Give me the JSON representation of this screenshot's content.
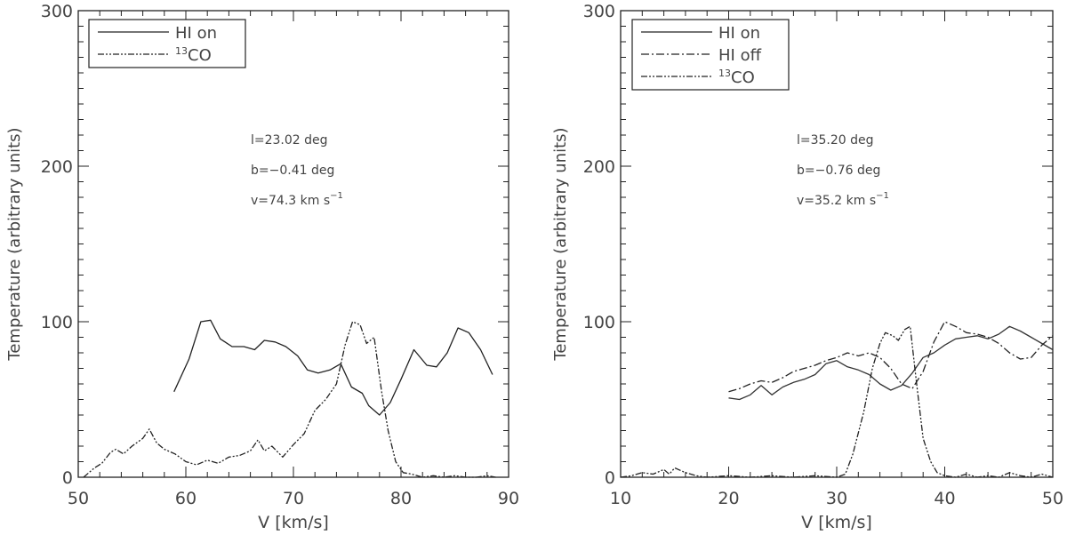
{
  "chart_data": [
    {
      "type": "line",
      "xlabel": "V [km/s]",
      "ylabel": "Temperature (arbitrary units)",
      "xlim": [
        50,
        90
      ],
      "ylim": [
        0,
        300
      ],
      "xticks": [
        50,
        60,
        70,
        80,
        90
      ],
      "yticks": [
        0,
        100,
        200,
        300
      ],
      "annotations": [
        "l=23.02 deg",
        "b=−0.41 deg",
        "v=74.3 km s"
      ],
      "annotation_superscript": "−1",
      "legend": {
        "position": "top-left",
        "entries": [
          {
            "label": "HI on",
            "style": "solid"
          },
          {
            "label": "CO",
            "superscript": "13",
            "style": "dash-dot-dot"
          }
        ]
      },
      "series": [
        {
          "name": "HI on",
          "style": "solid",
          "x": [
            58.9,
            60.3,
            61.4,
            62.3,
            63.2,
            64.3,
            65.4,
            66.4,
            67.3,
            68.3,
            69.3,
            70.4,
            71.3,
            72.3,
            73.4,
            74.4,
            75.4,
            76.4,
            77.0,
            78.0,
            79.0,
            80.0,
            81.2,
            82.4,
            83.3,
            84.3,
            85.3,
            86.3,
            87.4,
            88.5
          ],
          "y": [
            55,
            76,
            100,
            101,
            89,
            84,
            84,
            82,
            88,
            87,
            84,
            78,
            69,
            67,
            69,
            73,
            58,
            54,
            46,
            40,
            48,
            63,
            82,
            72,
            71,
            80,
            96,
            93,
            82,
            66
          ]
        },
        {
          "name": "13CO",
          "style": "dash-dot-dot",
          "x": [
            50.5,
            51.5,
            52.2,
            53.0,
            53.5,
            54.2,
            55.0,
            56.0,
            56.6,
            57.3,
            58.0,
            59.0,
            60.0,
            61.0,
            62.0,
            63.0,
            64.0,
            65.0,
            66.0,
            66.7,
            67.3,
            68.0,
            69.0,
            70.0,
            71.0,
            72.0,
            73.0,
            74.0,
            74.8,
            75.5,
            76.2,
            76.8,
            77.5,
            78.2,
            78.8,
            79.5,
            80.2,
            81.0,
            82.0,
            83.0,
            84.0,
            85.0,
            86.0,
            87.0,
            88.0,
            88.8
          ],
          "y": [
            0,
            6,
            9,
            16,
            18,
            15,
            20,
            25,
            31,
            22,
            18,
            15,
            10,
            8,
            11,
            9,
            13,
            14,
            17,
            24,
            17,
            20,
            13,
            21,
            28,
            43,
            50,
            60,
            85,
            100,
            98,
            86,
            90,
            55,
            30,
            10,
            3,
            2,
            0,
            1,
            0,
            1,
            0,
            0,
            1,
            0
          ]
        }
      ]
    },
    {
      "type": "line",
      "xlabel": "V [km/s]",
      "ylabel": "Temperature (arbitrary units)",
      "xlim": [
        10,
        50
      ],
      "ylim": [
        0,
        300
      ],
      "xticks": [
        10,
        20,
        30,
        40,
        50
      ],
      "yticks": [
        0,
        100,
        200,
        300
      ],
      "annotations": [
        "l=35.20 deg",
        "b=−0.76 deg",
        "v=35.2 km s"
      ],
      "annotation_superscript": "−1",
      "legend": {
        "position": "top-left",
        "entries": [
          {
            "label": "HI on",
            "style": "solid"
          },
          {
            "label": "HI off",
            "style": "dash-dot"
          },
          {
            "label": "CO",
            "superscript": "13",
            "style": "dash-dot-dot"
          }
        ]
      },
      "series": [
        {
          "name": "HI on",
          "style": "solid",
          "x": [
            20.0,
            21.0,
            22.0,
            23.0,
            24.0,
            25.0,
            26.0,
            27.0,
            28.0,
            29.0,
            30.0,
            31.0,
            32.0,
            33.0,
            34.0,
            35.0,
            36.0,
            37.0,
            38.0,
            39.0,
            40.0,
            41.0,
            42.0,
            43.0,
            44.0,
            45.0,
            46.0,
            47.0,
            48.0,
            49.0,
            50.0
          ],
          "y": [
            51,
            50,
            53,
            59,
            53,
            58,
            61,
            63,
            66,
            73,
            75,
            71,
            69,
            66,
            60,
            56,
            59,
            67,
            77,
            80,
            85,
            89,
            90,
            91,
            89,
            92,
            97,
            94,
            90,
            86,
            82
          ],
          "color": "#333333"
        },
        {
          "name": "HI off",
          "style": "dash-dot",
          "x": [
            20.0,
            21.0,
            22.0,
            23.0,
            24.0,
            25.0,
            26.0,
            27.0,
            28.0,
            29.0,
            30.0,
            31.0,
            32.0,
            33.0,
            34.0,
            35.0,
            36.0,
            37.0,
            38.0,
            39.0,
            40.0,
            41.0,
            42.0,
            43.0,
            44.0,
            45.0,
            46.0,
            47.0,
            48.0,
            49.0,
            50.0
          ],
          "y": [
            55,
            57,
            60,
            62,
            61,
            64,
            68,
            70,
            72,
            75,
            77,
            80,
            78,
            80,
            77,
            70,
            60,
            57,
            68,
            87,
            100,
            97,
            93,
            92,
            90,
            86,
            80,
            76,
            77,
            85,
            91
          ]
        },
        {
          "name": "13CO",
          "style": "dash-dot-dot",
          "x": [
            10.0,
            11.0,
            12.0,
            13.0,
            14.0,
            14.5,
            15.0,
            16.0,
            17.0,
            18.0,
            20.0,
            22.0,
            24.0,
            26.0,
            28.0,
            30.0,
            30.8,
            31.5,
            32.5,
            33.3,
            34.0,
            34.5,
            35.2,
            35.7,
            36.3,
            36.8,
            37.4,
            38.0,
            38.7,
            39.3,
            40.0,
            41.0,
            42.0,
            43.0,
            44.0,
            45.0,
            46.0,
            47.0,
            48.0,
            49.0,
            50.0
          ],
          "y": [
            0,
            1,
            3,
            2,
            5,
            2,
            6,
            3,
            1,
            0,
            1,
            0,
            1,
            0,
            1,
            0,
            2,
            15,
            42,
            70,
            86,
            93,
            91,
            88,
            95,
            97,
            60,
            25,
            10,
            3,
            1,
            0,
            2,
            0,
            1,
            0,
            3,
            1,
            0,
            2,
            0
          ]
        }
      ]
    }
  ]
}
